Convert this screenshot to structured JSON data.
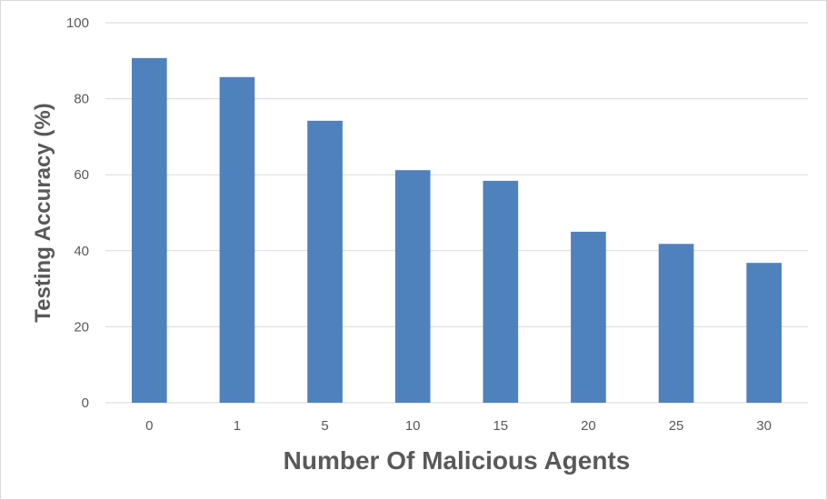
{
  "chart_data": {
    "type": "bar",
    "title": "",
    "xlabel": "Number Of Malicious Agents",
    "ylabel": "Testing Accuracy (%)",
    "categories": [
      "0",
      "1",
      "5",
      "10",
      "15",
      "20",
      "25",
      "30"
    ],
    "values": [
      90.7,
      85.7,
      74.2,
      61.2,
      58.4,
      45.0,
      41.8,
      36.8
    ],
    "ylim": [
      0,
      100
    ],
    "yticks": [
      0,
      20,
      40,
      60,
      80,
      100
    ],
    "grid": true,
    "legend": "none",
    "bar_color": "#4f81bd",
    "grid_color": "#d9d9d9",
    "text_color": "#595959"
  }
}
